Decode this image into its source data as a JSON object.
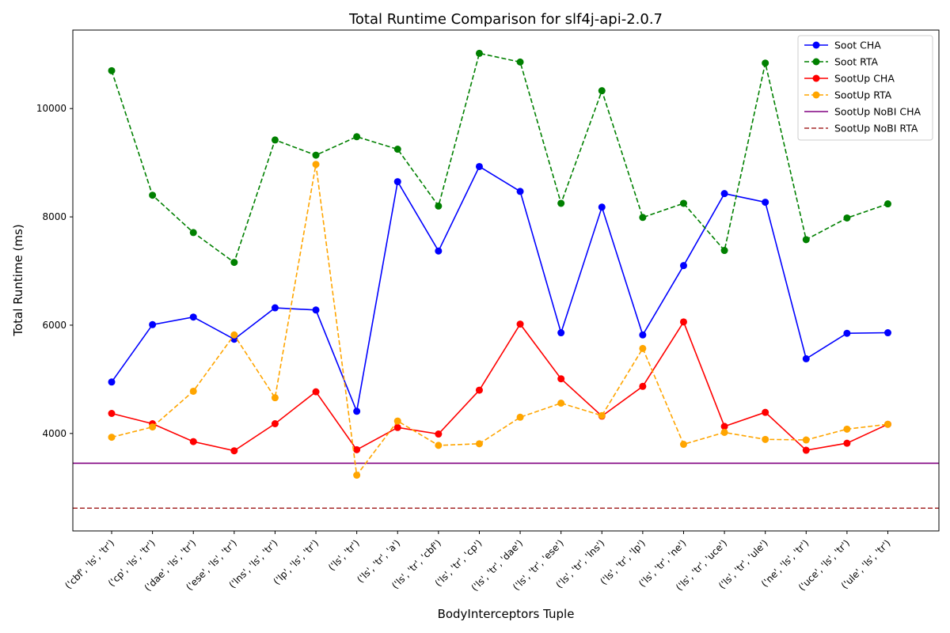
{
  "chart_data": {
    "type": "line",
    "title": "Total Runtime Comparison for slf4j-api-2.0.7",
    "xlabel": "BodyInterceptors Tuple",
    "ylabel": "Total Runtime (ms)",
    "ylim": [
      2200,
      11450
    ],
    "yticks": [
      4000,
      6000,
      8000,
      10000
    ],
    "grid": false,
    "legend_position": "top-right",
    "categories": [
      "('cbf', 'ls', 'tr')",
      "('cp', 'ls', 'tr')",
      "('dae', 'ls', 'tr')",
      "('ese', 'ls', 'tr')",
      "('lns', 'ls', 'tr')",
      "('lp', 'ls', 'tr')",
      "('ls', 'tr')",
      "('ls', 'tr', 'a')",
      "('ls', 'tr', 'cbf')",
      "('ls', 'tr', 'cp')",
      "('ls', 'tr', 'dae')",
      "('ls', 'tr', 'ese')",
      "('ls', 'tr', 'lns')",
      "('ls', 'tr', 'lp')",
      "('ls', 'tr', 'ne')",
      "('ls', 'tr', 'uce')",
      "('ls', 'tr', 'ule')",
      "('ne', 'ls', 'tr')",
      "('uce', 'ls', 'tr')",
      "('ule', 'ls', 'tr')"
    ],
    "series": [
      {
        "name": "Soot CHA",
        "color": "#0000ff",
        "dash": "solid",
        "marker": true,
        "values": [
          4950,
          6010,
          6150,
          5740,
          6320,
          6280,
          4410,
          8650,
          7370,
          8930,
          8470,
          5860,
          8180,
          5820,
          7100,
          8430,
          8270,
          5380,
          5850,
          5860
        ]
      },
      {
        "name": "Soot RTA",
        "color": "#008000",
        "dash": "dashed",
        "marker": true,
        "values": [
          10700,
          8400,
          7710,
          7160,
          9420,
          9140,
          9480,
          9250,
          8200,
          11020,
          10860,
          8250,
          10330,
          7990,
          8250,
          7380,
          10840,
          7580,
          7980,
          8240
        ]
      },
      {
        "name": "SootUp CHA",
        "color": "#ff0000",
        "dash": "solid",
        "marker": true,
        "values": [
          4370,
          4180,
          3850,
          3680,
          4180,
          4770,
          3700,
          4110,
          3990,
          4800,
          6020,
          5010,
          4320,
          4870,
          6060,
          4130,
          4390,
          3690,
          3820,
          4170
        ]
      },
      {
        "name": "SootUp RTA",
        "color": "#ffa500",
        "dash": "dashed",
        "marker": true,
        "values": [
          3930,
          4120,
          4780,
          5820,
          4660,
          8970,
          3230,
          4230,
          3780,
          3810,
          4300,
          4560,
          4330,
          5570,
          3800,
          4020,
          3890,
          3880,
          4080,
          4170
        ]
      }
    ],
    "reference_lines": [
      {
        "name": "SootUp NoBI CHA",
        "color": "#800080",
        "dash": "solid",
        "value": 3450
      },
      {
        "name": "SootUp NoBI RTA",
        "color": "#a52a2a",
        "dash": "dashed",
        "value": 2620
      }
    ]
  }
}
